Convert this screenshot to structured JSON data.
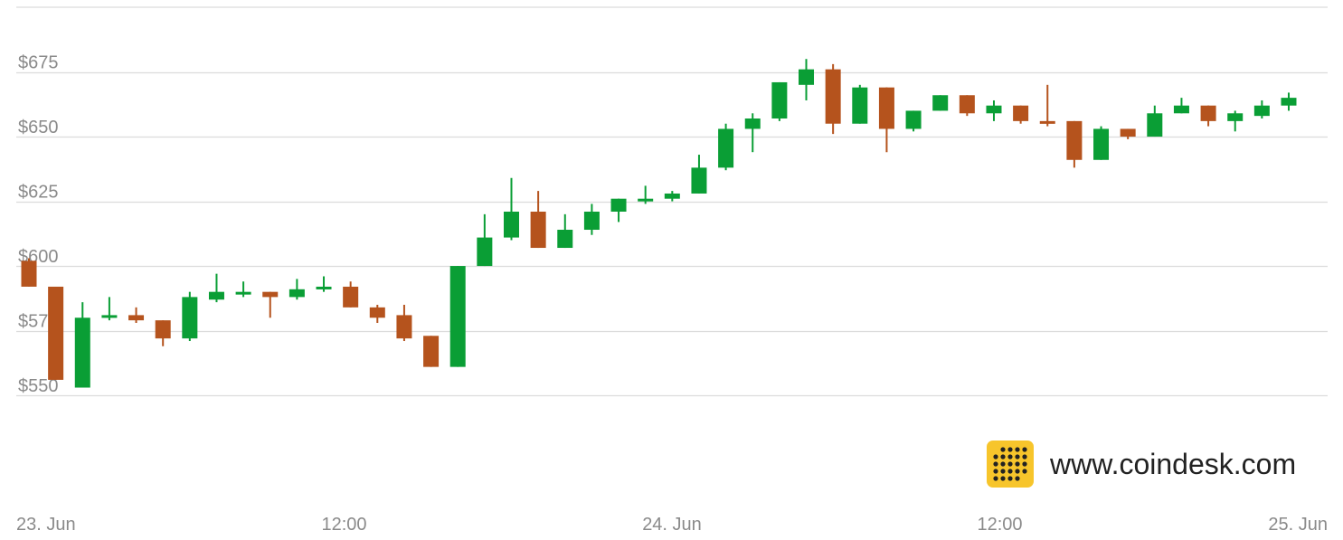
{
  "chart_data": {
    "type": "candlestick",
    "ylim": [
      535,
      700
    ],
    "yticks": [
      550,
      575,
      600,
      625,
      650,
      675
    ],
    "ytick_labels": [
      "$550",
      "$575",
      "$600",
      "$625",
      "$650",
      "$675"
    ],
    "xlim": [
      0,
      48
    ],
    "x_ticks": [
      {
        "x": 0,
        "label": "23. Jun"
      },
      {
        "x": 12,
        "label": "12:00"
      },
      {
        "x": 24,
        "label": "24. Jun"
      },
      {
        "x": 36,
        "label": "12:00"
      },
      {
        "x": 48,
        "label": "25. Jun"
      }
    ],
    "x_unit": "hours since 23. Jun 00:00",
    "colors": {
      "up": "#0a9e35",
      "down": "#b5531d",
      "grid": "#dcdcdc"
    },
    "candles": [
      {
        "x": 0,
        "open": 602,
        "high": 603,
        "low": 592,
        "close": 592
      },
      {
        "x": 1,
        "open": 592,
        "high": 592,
        "low": 556,
        "close": 556
      },
      {
        "x": 2,
        "open": 553,
        "high": 586,
        "low": 553,
        "close": 580
      },
      {
        "x": 3,
        "open": 580,
        "high": 588,
        "low": 579,
        "close": 581
      },
      {
        "x": 4,
        "open": 581,
        "high": 584,
        "low": 578,
        "close": 579
      },
      {
        "x": 5,
        "open": 579,
        "high": 579,
        "low": 569,
        "close": 572
      },
      {
        "x": 6,
        "open": 572,
        "high": 590,
        "low": 571,
        "close": 588
      },
      {
        "x": 7,
        "open": 587,
        "high": 597,
        "low": 586,
        "close": 590
      },
      {
        "x": 8,
        "open": 589,
        "high": 594,
        "low": 588,
        "close": 590
      },
      {
        "x": 9,
        "open": 590,
        "high": 590,
        "low": 580,
        "close": 588
      },
      {
        "x": 10,
        "open": 588,
        "high": 595,
        "low": 587,
        "close": 591
      },
      {
        "x": 11,
        "open": 591,
        "high": 596,
        "low": 590,
        "close": 592
      },
      {
        "x": 12,
        "open": 592,
        "high": 594,
        "low": 584,
        "close": 584
      },
      {
        "x": 13,
        "open": 584,
        "high": 585,
        "low": 578,
        "close": 580
      },
      {
        "x": 14,
        "open": 581,
        "high": 585,
        "low": 571,
        "close": 572
      },
      {
        "x": 15,
        "open": 573,
        "high": 573,
        "low": 561,
        "close": 561
      },
      {
        "x": 16,
        "open": 561,
        "high": 600,
        "low": 561,
        "close": 600
      },
      {
        "x": 17,
        "open": 600,
        "high": 620,
        "low": 600,
        "close": 611
      },
      {
        "x": 18,
        "open": 611,
        "high": 634,
        "low": 610,
        "close": 621
      },
      {
        "x": 19,
        "open": 621,
        "high": 629,
        "low": 607,
        "close": 607
      },
      {
        "x": 20,
        "open": 607,
        "high": 620,
        "low": 607,
        "close": 614
      },
      {
        "x": 21,
        "open": 614,
        "high": 624,
        "low": 612,
        "close": 621
      },
      {
        "x": 22,
        "open": 621,
        "high": 626,
        "low": 617,
        "close": 626
      },
      {
        "x": 23,
        "open": 625,
        "high": 631,
        "low": 624,
        "close": 626
      },
      {
        "x": 24,
        "open": 626,
        "high": 629,
        "low": 625,
        "close": 628
      },
      {
        "x": 25,
        "open": 628,
        "high": 643,
        "low": 628,
        "close": 638
      },
      {
        "x": 26,
        "open": 638,
        "high": 655,
        "low": 637,
        "close": 653
      },
      {
        "x": 27,
        "open": 653,
        "high": 659,
        "low": 644,
        "close": 657
      },
      {
        "x": 28,
        "open": 657,
        "high": 671,
        "low": 656,
        "close": 671
      },
      {
        "x": 29,
        "open": 670,
        "high": 680,
        "low": 664,
        "close": 676
      },
      {
        "x": 30,
        "open": 676,
        "high": 678,
        "low": 651,
        "close": 655
      },
      {
        "x": 31,
        "open": 655,
        "high": 670,
        "low": 655,
        "close": 669
      },
      {
        "x": 32,
        "open": 669,
        "high": 669,
        "low": 644,
        "close": 653
      },
      {
        "x": 33,
        "open": 653,
        "high": 660,
        "low": 652,
        "close": 660
      },
      {
        "x": 34,
        "open": 660,
        "high": 666,
        "low": 660,
        "close": 666
      },
      {
        "x": 35,
        "open": 666,
        "high": 666,
        "low": 658,
        "close": 659
      },
      {
        "x": 36,
        "open": 659,
        "high": 664,
        "low": 656,
        "close": 662
      },
      {
        "x": 37,
        "open": 662,
        "high": 662,
        "low": 655,
        "close": 656
      },
      {
        "x": 38,
        "open": 656,
        "high": 670,
        "low": 654,
        "close": 655
      },
      {
        "x": 39,
        "open": 656,
        "high": 656,
        "low": 638,
        "close": 641
      },
      {
        "x": 40,
        "open": 641,
        "high": 654,
        "low": 641,
        "close": 653
      },
      {
        "x": 41,
        "open": 653,
        "high": 653,
        "low": 649,
        "close": 650
      },
      {
        "x": 42,
        "open": 650,
        "high": 662,
        "low": 650,
        "close": 659
      },
      {
        "x": 43,
        "open": 659,
        "high": 665,
        "low": 659,
        "close": 662
      },
      {
        "x": 44,
        "open": 662,
        "high": 662,
        "low": 654,
        "close": 656
      },
      {
        "x": 45,
        "open": 656,
        "high": 660,
        "low": 652,
        "close": 659
      },
      {
        "x": 46,
        "open": 658,
        "high": 664,
        "low": 657,
        "close": 662
      },
      {
        "x": 47,
        "open": 662,
        "high": 667,
        "low": 660,
        "close": 665
      }
    ]
  },
  "watermark": {
    "text": "www.coindesk.com",
    "icon": "coindesk-logo-icon",
    "icon_color": "#f7c52b",
    "dot_color": "#222222"
  }
}
